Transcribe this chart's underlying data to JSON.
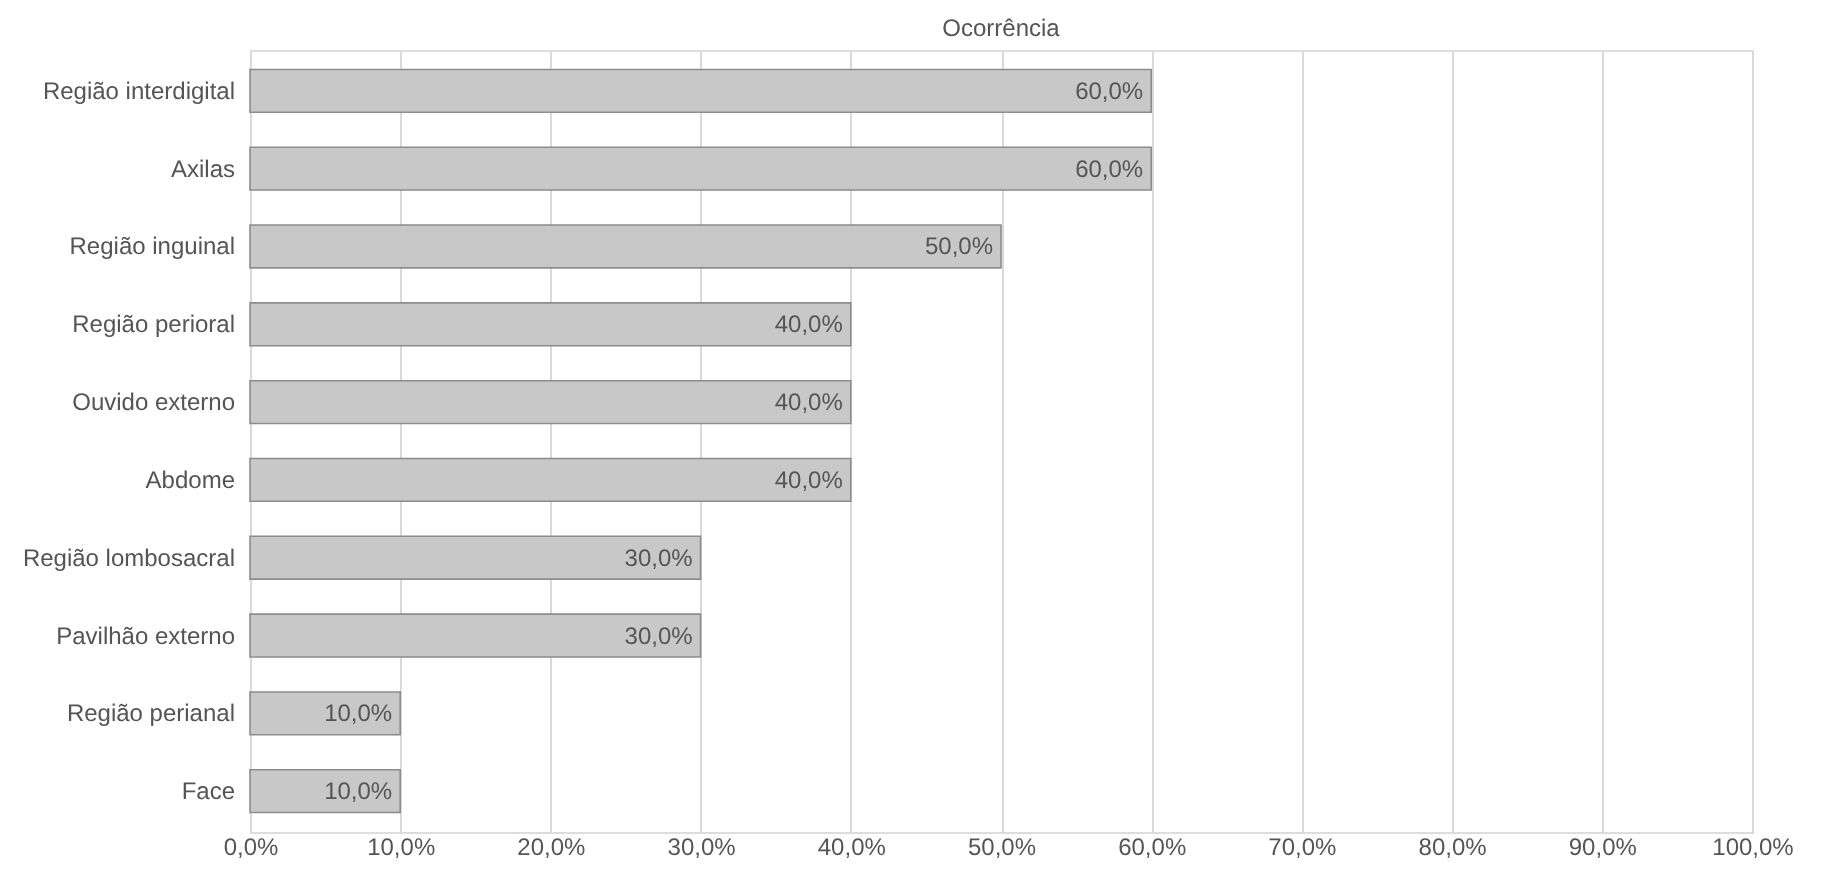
{
  "chart_data": {
    "type": "bar",
    "orientation": "horizontal",
    "title": "Ocorrência",
    "categories": [
      "Região interdigital",
      "Axilas",
      "Região inguinal",
      "Região perioral",
      "Ouvido externo",
      "Abdome",
      "Região lombosacral",
      "Pavilhão externo",
      "Região perianal",
      "Face"
    ],
    "values": [
      60,
      60,
      50,
      40,
      40,
      40,
      30,
      30,
      10,
      10
    ],
    "value_labels": [
      "60,0%",
      "60,0%",
      "50,0%",
      "40,0%",
      "40,0%",
      "40,0%",
      "30,0%",
      "30,0%",
      "10,0%",
      "10,0%"
    ],
    "color": "#c8c8c8",
    "xlim": [
      0,
      100
    ],
    "xticks": [
      {
        "value": 0,
        "label": "0,0%"
      },
      {
        "value": 10,
        "label": "10,0%"
      },
      {
        "value": 20,
        "label": "20,0%"
      },
      {
        "value": 30,
        "label": "30,0%"
      },
      {
        "value": 40,
        "label": "40,0%"
      },
      {
        "value": 50,
        "label": "50,0%"
      },
      {
        "value": 60,
        "label": "60,0%"
      },
      {
        "value": 70,
        "label": "70,0%"
      },
      {
        "value": 80,
        "label": "80,0%"
      },
      {
        "value": 90,
        "label": "90,0%"
      },
      {
        "value": 100,
        "label": "100,0%"
      }
    ],
    "grid": "x"
  }
}
